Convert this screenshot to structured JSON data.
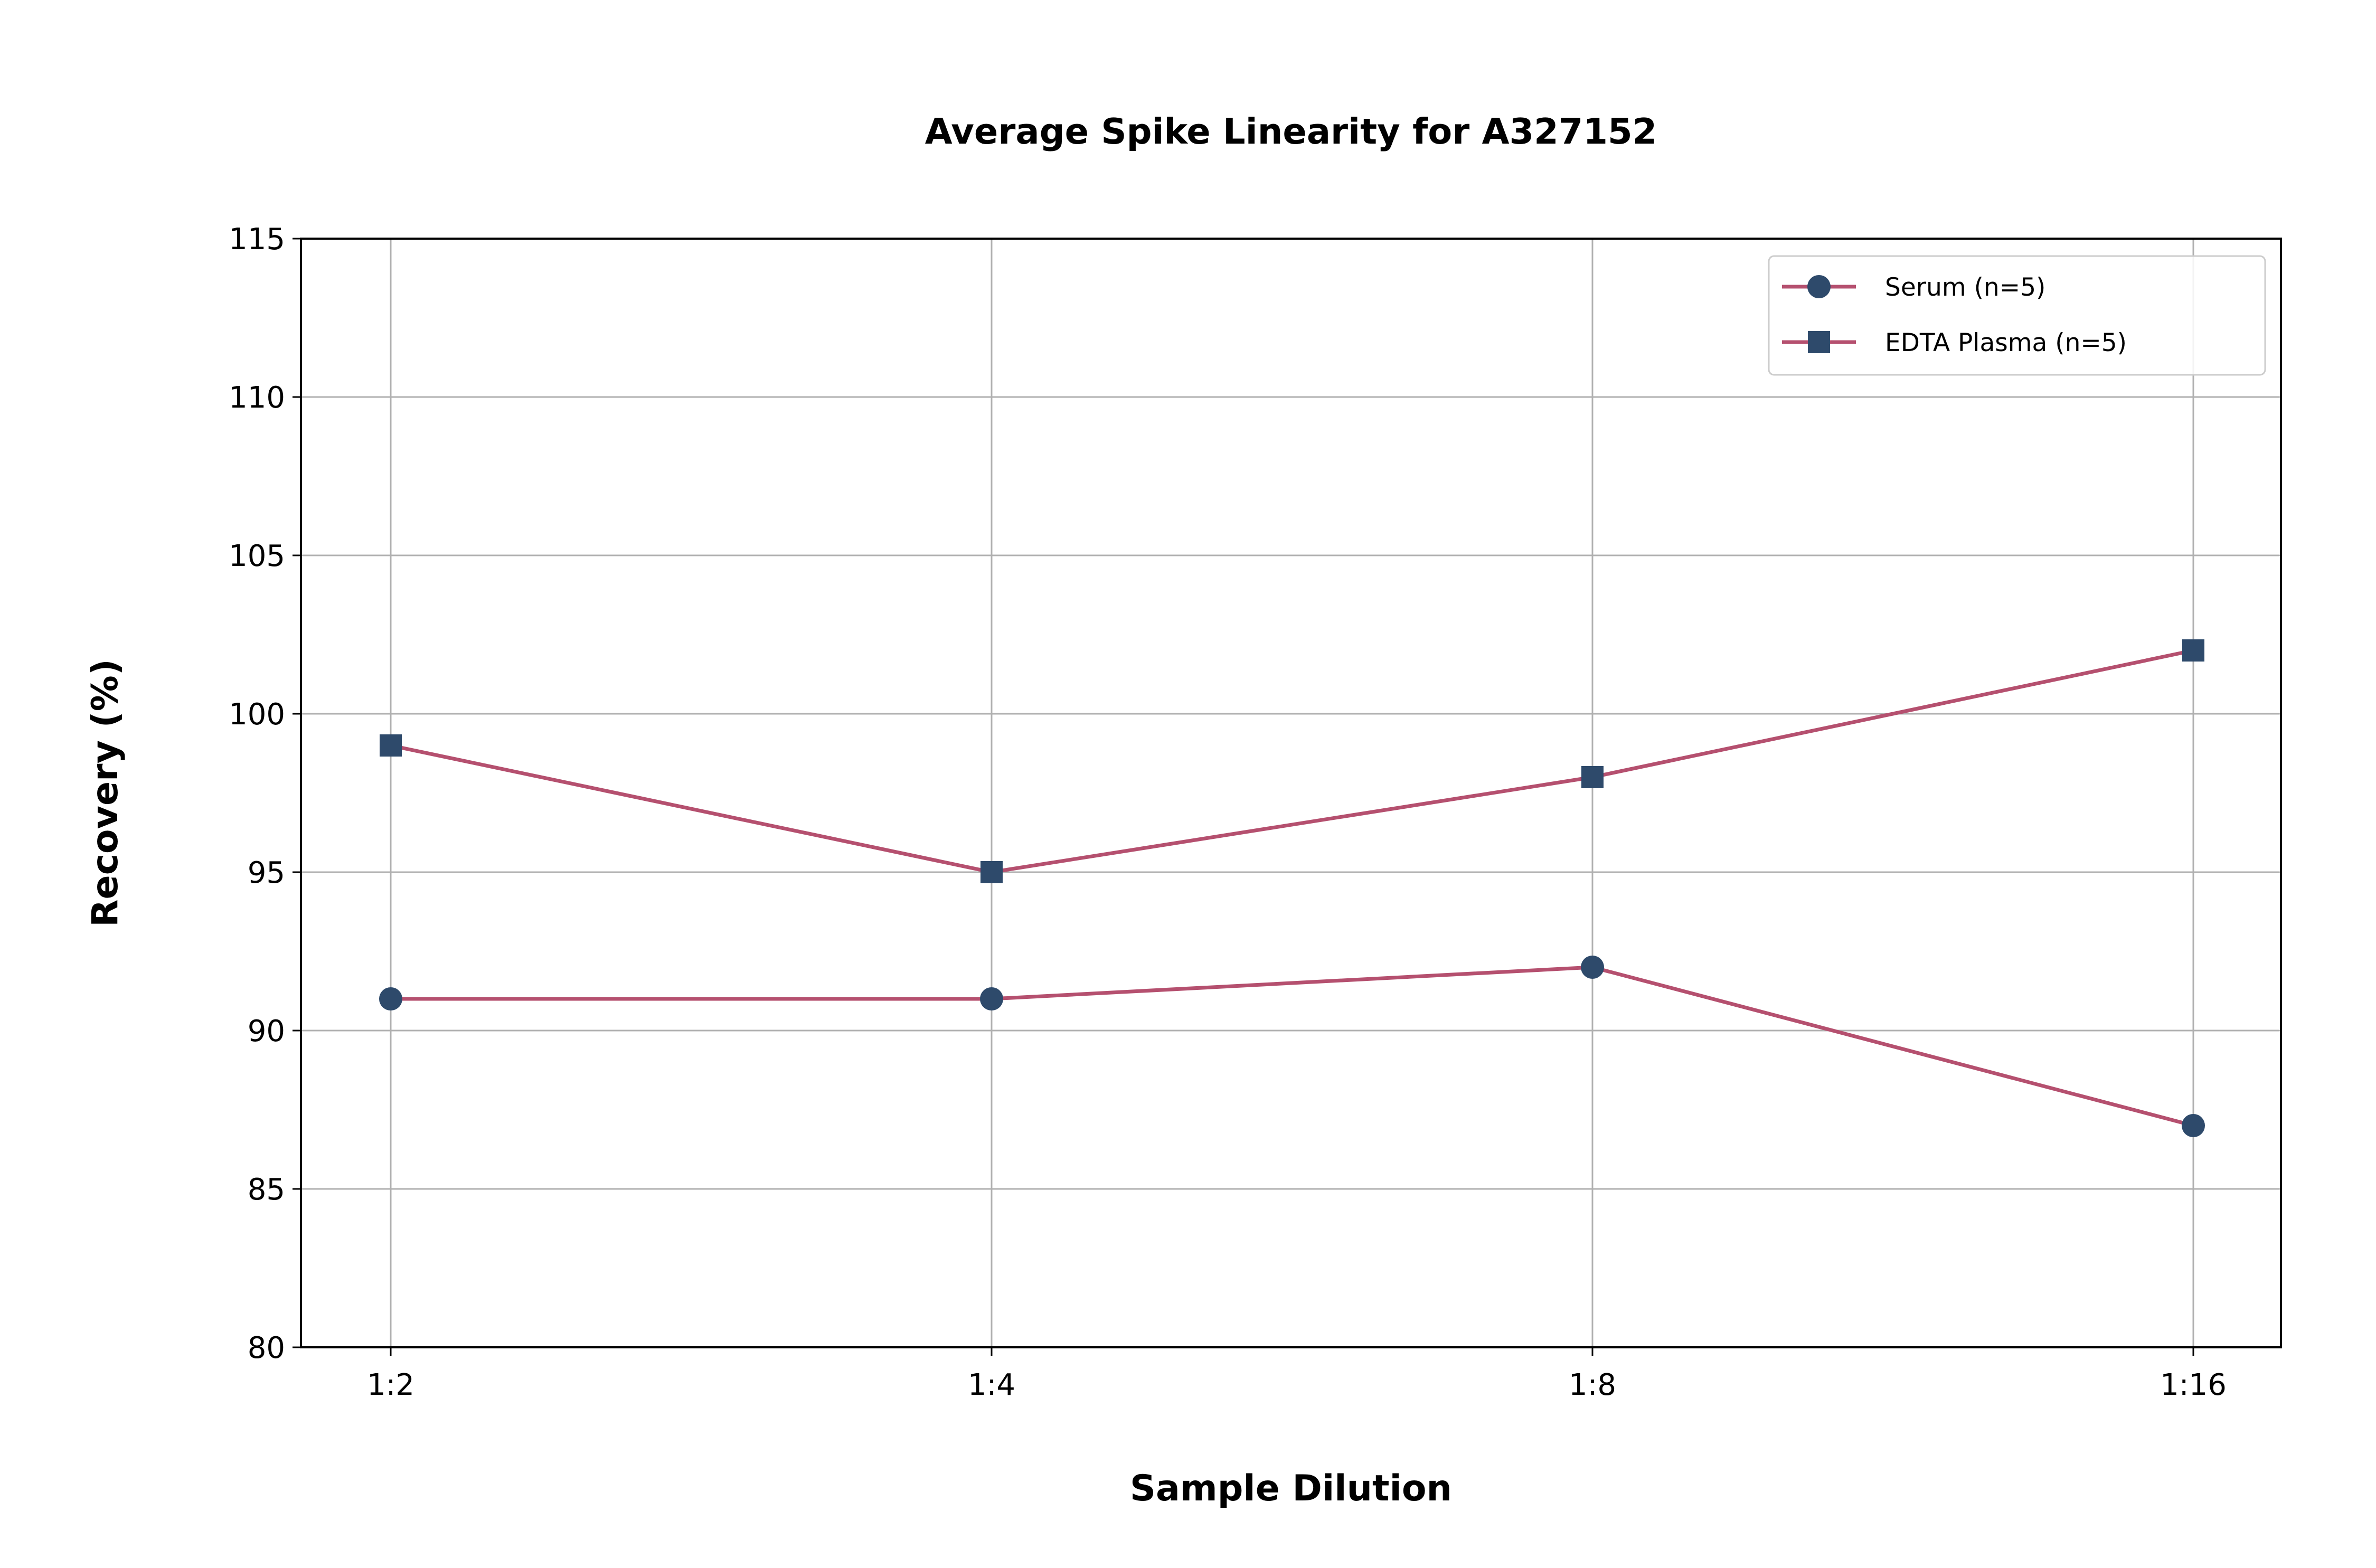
{
  "chart_data": {
    "type": "line",
    "title": "Average Spike Linearity for A327152",
    "xlabel": "Sample Dilution",
    "ylabel": "Recovery (%)",
    "categories": [
      "1:2",
      "1:4",
      "1:8",
      "1:16"
    ],
    "ylim": [
      80,
      115
    ],
    "yticks": [
      80,
      85,
      90,
      95,
      100,
      105,
      110,
      115
    ],
    "grid": true,
    "legend_position": "top-right",
    "series": [
      {
        "name": "Serum (n=5)",
        "marker": "circle",
        "values": [
          91,
          91,
          92,
          87
        ]
      },
      {
        "name": "EDTA Plasma (n=5)",
        "marker": "square",
        "values": [
          99,
          95,
          98,
          102
        ]
      }
    ],
    "colors": {
      "line": "#b5506f",
      "marker": "#2e4a6b",
      "grid": "#b0b0b0",
      "axis": "#000000"
    }
  }
}
